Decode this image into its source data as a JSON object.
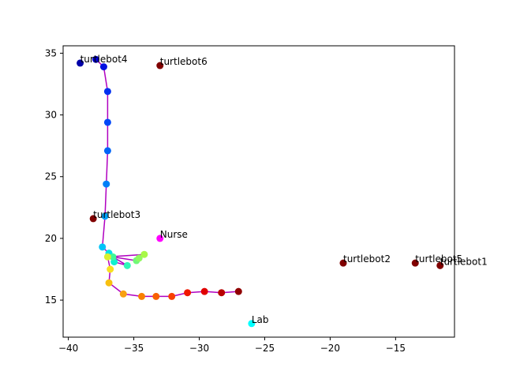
{
  "chart_data": {
    "type": "scatter",
    "title": "",
    "xlabel": "",
    "ylabel": "",
    "xlim": [
      -40.4,
      -10.5
    ],
    "ylim": [
      12.0,
      35.6
    ],
    "xticks": [
      -40,
      -35,
      -30,
      -25,
      -20,
      -15
    ],
    "yticks": [
      15,
      20,
      25,
      30,
      35
    ],
    "grid": false,
    "path": {
      "color": "#b000c0",
      "points": [
        {
          "x": -37.9,
          "y": 34.5,
          "color": "#0000c8"
        },
        {
          "x": -37.3,
          "y": 33.9,
          "color": "#0010e0"
        },
        {
          "x": -37.0,
          "y": 31.9,
          "color": "#0030f0"
        },
        {
          "x": -37.0,
          "y": 29.4,
          "color": "#0048f8"
        },
        {
          "x": -37.0,
          "y": 27.1,
          "color": "#0064f8"
        },
        {
          "x": -37.1,
          "y": 24.4,
          "color": "#0080f8"
        },
        {
          "x": -37.2,
          "y": 21.8,
          "color": "#00a0f8"
        },
        {
          "x": -37.4,
          "y": 19.3,
          "color": "#00c4f8"
        },
        {
          "x": -36.9,
          "y": 18.8,
          "color": "#00e0e8"
        },
        {
          "x": -36.5,
          "y": 18.1,
          "color": "#10f0d0"
        },
        {
          "x": -35.5,
          "y": 17.8,
          "color": "#30f8b8"
        },
        {
          "x": -36.6,
          "y": 18.5,
          "color": "#40f898"
        },
        {
          "x": -34.8,
          "y": 18.2,
          "color": "#70f878"
        },
        {
          "x": -34.6,
          "y": 18.4,
          "color": "#90f860"
        },
        {
          "x": -34.2,
          "y": 18.7,
          "color": "#a8f848"
        },
        {
          "x": -37.0,
          "y": 18.5,
          "color": "#d8f030"
        },
        {
          "x": -36.8,
          "y": 17.5,
          "color": "#f8e020"
        },
        {
          "x": -36.9,
          "y": 16.4,
          "color": "#f8c010"
        },
        {
          "x": -35.8,
          "y": 15.5,
          "color": "#f8a010"
        },
        {
          "x": -34.4,
          "y": 15.3,
          "color": "#f88000"
        },
        {
          "x": -33.3,
          "y": 15.3,
          "color": "#f86000"
        },
        {
          "x": -32.1,
          "y": 15.3,
          "color": "#f84000"
        },
        {
          "x": -30.9,
          "y": 15.6,
          "color": "#f01800"
        },
        {
          "x": -29.6,
          "y": 15.7,
          "color": "#e00000"
        },
        {
          "x": -28.3,
          "y": 15.6,
          "color": "#b80000"
        },
        {
          "x": -27.0,
          "y": 15.7,
          "color": "#900000"
        }
      ]
    },
    "labeled_points": [
      {
        "label": "turtlebot4",
        "x": -39.1,
        "y": 34.2,
        "color": "#0000a8"
      },
      {
        "label": "turtlebot6",
        "x": -33.0,
        "y": 34.0,
        "color": "#800000"
      },
      {
        "label": "turtlebot3",
        "x": -38.1,
        "y": 21.6,
        "color": "#800000"
      },
      {
        "label": "Nurse",
        "x": -33.0,
        "y": 20.0,
        "color": "#ff00ff"
      },
      {
        "label": "turtlebot2",
        "x": -19.0,
        "y": 18.0,
        "color": "#800000"
      },
      {
        "label": "turtlebot5",
        "x": -13.5,
        "y": 18.0,
        "color": "#800000"
      },
      {
        "label": "turtlebot1",
        "x": -11.6,
        "y": 17.8,
        "color": "#800000"
      },
      {
        "label": "Lab",
        "x": -26.0,
        "y": 13.1,
        "color": "#00ffff"
      }
    ]
  }
}
